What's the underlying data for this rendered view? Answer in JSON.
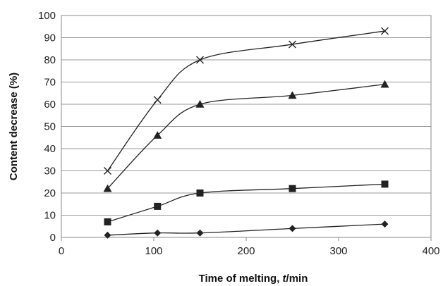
{
  "chart_data": {
    "type": "line",
    "title": "",
    "xlabel_prefix": "Time of melting, ",
    "xlabel_var": "t",
    "xlabel_unit": "/min",
    "ylabel": "Content decrease (%)",
    "xlim": [
      0,
      400
    ],
    "ylim": [
      0,
      100
    ],
    "x_ticks": [
      0,
      100,
      200,
      300,
      400
    ],
    "y_ticks": [
      0,
      10,
      20,
      30,
      40,
      50,
      60,
      70,
      80,
      90,
      100
    ],
    "grid": "horizontal",
    "legend": "none",
    "x": [
      50,
      104,
      150,
      250,
      350
    ],
    "series": [
      {
        "marker": "cross",
        "color": "#222222",
        "values": [
          30,
          62,
          80,
          87,
          93
        ]
      },
      {
        "marker": "triangle",
        "color": "#222222",
        "values": [
          22,
          46,
          60,
          64,
          69
        ]
      },
      {
        "marker": "square",
        "color": "#222222",
        "values": [
          7,
          14,
          20,
          22,
          24
        ]
      },
      {
        "marker": "diamond",
        "color": "#222222",
        "values": [
          1,
          2,
          2,
          4,
          6
        ]
      }
    ]
  }
}
